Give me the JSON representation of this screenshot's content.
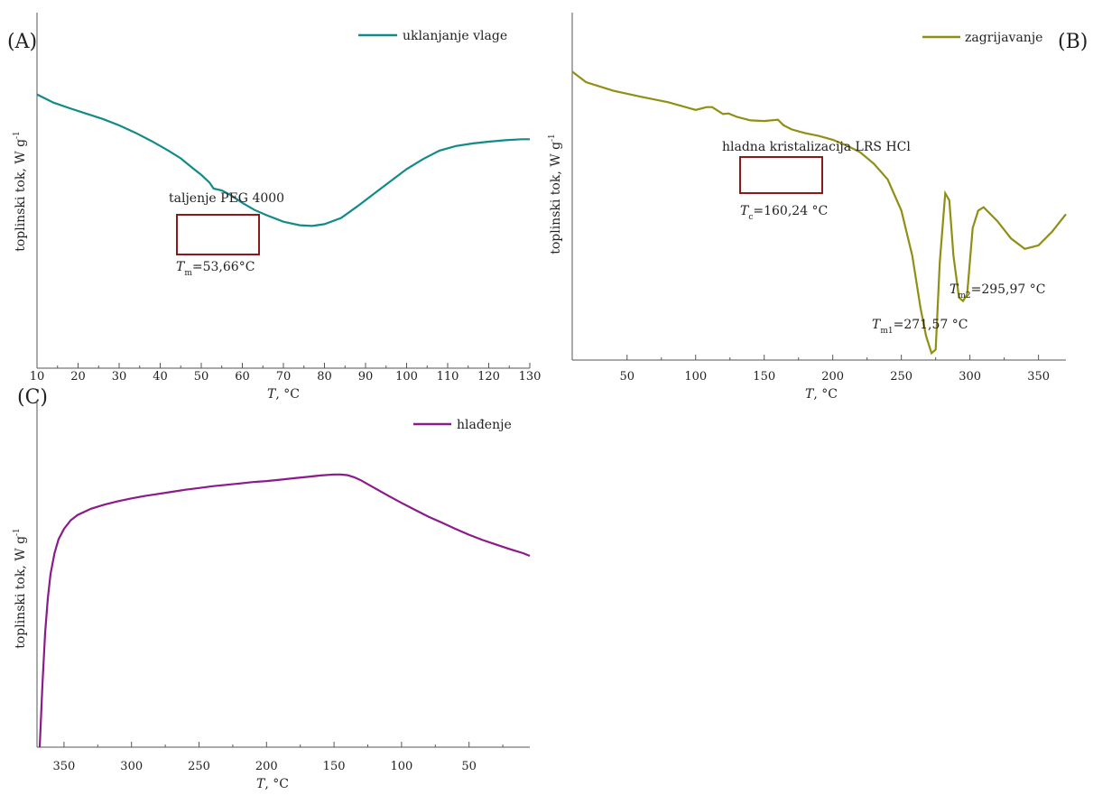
{
  "chart_data": [
    {
      "panel_label": "(A)",
      "type": "line",
      "xlabel_var": "T",
      "xlabel_unit": ", °C",
      "ylabel": "toplinski tok,  W g",
      "ylabel_sup": "-1",
      "xlim": [
        10,
        130
      ],
      "x_ticks": [
        10,
        20,
        30,
        40,
        50,
        60,
        70,
        80,
        90,
        100,
        110,
        120,
        130
      ],
      "y_ticks_labeled": false,
      "legend_position": "top-right",
      "series": [
        {
          "name": "uklanjanje vlage",
          "color": "#138a8a",
          "x": [
            10,
            14,
            18,
            22,
            26,
            30,
            34,
            38,
            42,
            45,
            48,
            50,
            52,
            53,
            55,
            57,
            60,
            63,
            66,
            70,
            74,
            77,
            80,
            84,
            88,
            92,
            96,
            100,
            104,
            108,
            112,
            116,
            120,
            124,
            128,
            130
          ],
          "y": [
            0.77,
            0.747,
            0.731,
            0.716,
            0.701,
            0.683,
            0.662,
            0.638,
            0.612,
            0.59,
            0.562,
            0.544,
            0.522,
            0.505,
            0.5,
            0.488,
            0.465,
            0.445,
            0.43,
            0.412,
            0.402,
            0.4,
            0.405,
            0.422,
            0.455,
            0.49,
            0.525,
            0.56,
            0.588,
            0.612,
            0.625,
            0.632,
            0.637,
            0.641,
            0.644,
            0.644
          ]
        }
      ],
      "annotations": [
        {
          "label": "taljenje PEG 4000",
          "box_x": [
            44.5,
            64
          ]
        },
        {
          "var": "T",
          "sub": "m",
          "value": "=53,66°C"
        }
      ]
    },
    {
      "panel_label": "(B)",
      "type": "line",
      "xlabel_var": "T",
      "xlabel_unit": ", °C",
      "ylabel": "toplinski tok,  W g",
      "ylabel_sup": "-1",
      "xlim": [
        10,
        370
      ],
      "x_ticks": [
        50,
        100,
        150,
        200,
        250,
        300,
        350
      ],
      "y_ticks_labeled": false,
      "legend_position": "top-right",
      "series": [
        {
          "name": "zagrijavanje",
          "color": "#8f8f14",
          "x": [
            10,
            20,
            40,
            60,
            80,
            100,
            108,
            112,
            116,
            120,
            124,
            130,
            140,
            150,
            160,
            164,
            170,
            180,
            190,
            200,
            210,
            220,
            230,
            240,
            250,
            258,
            264,
            268,
            272,
            275,
            278,
            282,
            285,
            288,
            292,
            295,
            298,
            302,
            306,
            310,
            315,
            320,
            330,
            340,
            350,
            360,
            370
          ],
          "y": [
            0.83,
            0.8,
            0.775,
            0.758,
            0.742,
            0.72,
            0.728,
            0.728,
            0.718,
            0.708,
            0.71,
            0.7,
            0.69,
            0.688,
            0.692,
            0.676,
            0.664,
            0.653,
            0.645,
            0.634,
            0.618,
            0.598,
            0.565,
            0.52,
            0.43,
            0.3,
            0.15,
            0.07,
            0.02,
            0.03,
            0.28,
            0.48,
            0.46,
            0.3,
            0.18,
            0.17,
            0.19,
            0.38,
            0.43,
            0.44,
            0.42,
            0.4,
            0.35,
            0.32,
            0.33,
            0.37,
            0.42
          ]
        }
      ],
      "annotations": [
        {
          "label": "hladna kristalizacija LRS HCl",
          "box_x": [
            132,
            191
          ]
        },
        {
          "var": "T",
          "sub": "c",
          "value": "=160,24 °C"
        },
        {
          "var": "T",
          "sub": "m1",
          "value": "=271,57 °C"
        },
        {
          "var": "T",
          "sub": "m2",
          "value": "=295,97 °C"
        }
      ]
    },
    {
      "panel_label": "(C)",
      "type": "line",
      "xlabel_var": "T",
      "xlabel_unit": ", °C",
      "ylabel": "toplinski tok,  W g",
      "ylabel_sup": "-1",
      "xlim": [
        370,
        5
      ],
      "x_ticks": [
        350,
        300,
        250,
        200,
        150,
        100,
        50
      ],
      "y_ticks_labeled": false,
      "legend_position": "top-right",
      "series": [
        {
          "name": "hlađenje",
          "color": "#8b1a8b",
          "x": [
            368,
            366,
            364,
            362,
            360,
            357,
            354,
            350,
            345,
            340,
            330,
            320,
            310,
            300,
            290,
            280,
            270,
            260,
            250,
            240,
            230,
            220,
            210,
            200,
            190,
            180,
            170,
            160,
            150,
            145,
            140,
            135,
            130,
            120,
            110,
            100,
            90,
            80,
            70,
            60,
            50,
            40,
            30,
            20,
            10,
            5
          ],
          "y": [
            0.0,
            0.18,
            0.33,
            0.43,
            0.5,
            0.56,
            0.6,
            0.63,
            0.655,
            0.67,
            0.688,
            0.7,
            0.71,
            0.718,
            0.725,
            0.731,
            0.737,
            0.743,
            0.748,
            0.753,
            0.757,
            0.761,
            0.765,
            0.768,
            0.772,
            0.776,
            0.78,
            0.784,
            0.787,
            0.787,
            0.785,
            0.779,
            0.77,
            0.748,
            0.726,
            0.705,
            0.685,
            0.665,
            0.648,
            0.63,
            0.613,
            0.598,
            0.585,
            0.572,
            0.56,
            0.552
          ]
        }
      ],
      "annotations": []
    }
  ]
}
